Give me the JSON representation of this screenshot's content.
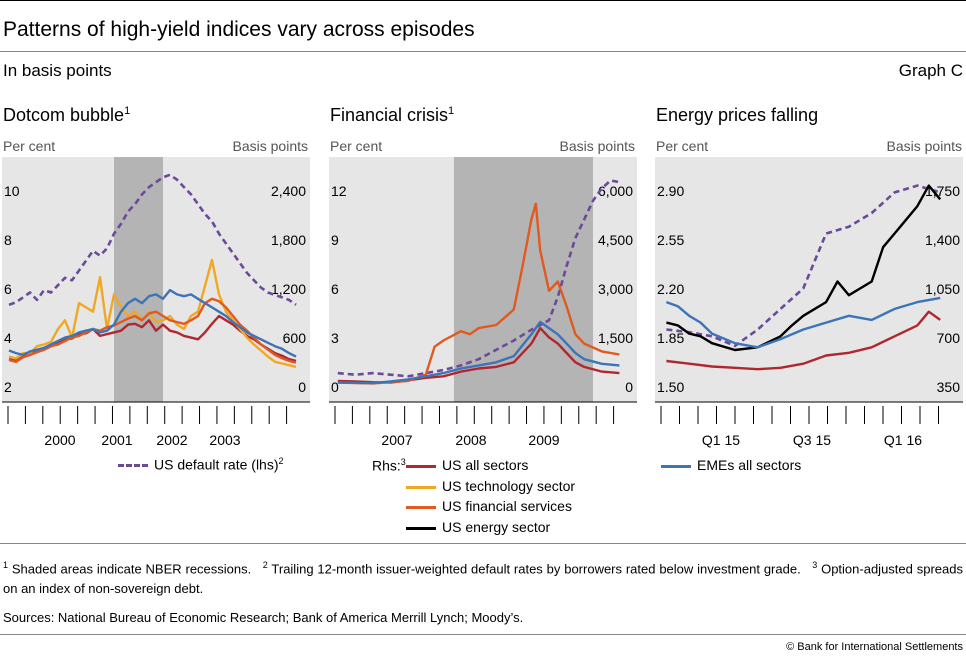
{
  "title": "Patterns of high-yield indices vary across episodes",
  "subtitle": "In basis points",
  "graph_id": "Graph C",
  "panels": [
    {
      "title": "Dotcom bubble",
      "sup": "1",
      "left_unit": "Per cent",
      "right_unit": "Basis points",
      "left_ticks": [
        "10",
        "8",
        "6",
        "4",
        "2"
      ],
      "right_ticks": [
        "2,400",
        "1,800",
        "1,200",
        "600",
        "0"
      ],
      "x_ticks": [
        "2000",
        "2001",
        "2002",
        "2003"
      ]
    },
    {
      "title": "Financial crisis",
      "sup": "1",
      "left_unit": "Per cent",
      "right_unit": "Basis points",
      "left_ticks": [
        "12",
        "9",
        "6",
        "3",
        "0"
      ],
      "right_ticks": [
        "6,000",
        "4,500",
        "3,000",
        "1,500",
        "0"
      ],
      "x_ticks": [
        "2007",
        "2008",
        "2009"
      ]
    },
    {
      "title": "Energy prices falling",
      "sup": "",
      "left_unit": "Per cent",
      "right_unit": "Basis points",
      "left_ticks": [
        "2.90",
        "2.55",
        "2.20",
        "1.85",
        "1.50"
      ],
      "right_ticks": [
        "1,750",
        "1,400",
        "1,050",
        "700",
        "350"
      ],
      "x_ticks": [
        "Q1 15",
        "Q3 15",
        "Q1 16"
      ]
    }
  ],
  "legend": {
    "default_rate": "US default rate (lhs)",
    "default_rate_sup": "2",
    "rhs_label": "Rhs:",
    "rhs_sup": "3",
    "us_all": "US all sectors",
    "us_tech": "US technology sector",
    "us_fin": "US financial services",
    "us_energy": "US energy sector",
    "emes": "EMEs all sectors"
  },
  "notes": {
    "n1_mark": "1",
    "n1": "Shaded areas indicate NBER recessions.",
    "n2_mark": "2",
    "n2": "Trailing 12-month issuer-weighted default rates by borrowers rated below investment grade.",
    "n3_mark": "3",
    "n3": "Option-adjusted spreads on an index of non-sovereign debt.",
    "sources": "Sources: National Bureau of Economic Research; Bank of America Merrill Lynch; Moody’s."
  },
  "copyright": "© Bank for International Settlements",
  "colors": {
    "default_rate": "#6b4a9a",
    "us_all": "#b0282e",
    "us_tech": "#f0a823",
    "us_fin": "#e05a1f",
    "us_energy": "#000000",
    "emes": "#3d74b8",
    "plot_bg": "#e6e6e6",
    "recession": "#b4b4b4"
  },
  "chart_data": [
    {
      "type": "line",
      "title": "Dotcom bubble",
      "x_range": [
        1999.6,
        2004.0
      ],
      "ylim_left": [
        2,
        11.5
      ],
      "ylim_right": [
        0,
        2700
      ],
      "recessions": [
        [
          2001.2,
          2001.9
        ]
      ],
      "series": [
        {
          "name": "US default rate (lhs)",
          "axis": "left",
          "style": "dashed",
          "color": "#6b4a9a",
          "x": [
            1999.7,
            1999.8,
            1999.9,
            2000.0,
            2000.1,
            2000.2,
            2000.3,
            2000.4,
            2000.5,
            2000.6,
            2000.7,
            2000.8,
            2000.9,
            2001.0,
            2001.1,
            2001.2,
            2001.3,
            2001.4,
            2001.5,
            2001.6,
            2001.7,
            2001.8,
            2001.9,
            2002.0,
            2002.1,
            2002.2,
            2002.3,
            2002.4,
            2002.5,
            2002.6,
            2002.7,
            2002.8,
            2002.9,
            2003.0,
            2003.1,
            2003.2,
            2003.3,
            2003.4,
            2003.5,
            2003.6,
            2003.7,
            2003.8
          ],
          "y": [
            5.8,
            5.9,
            6.1,
            6.3,
            6.0,
            6.4,
            6.3,
            6.6,
            6.9,
            6.8,
            7.2,
            7.6,
            8.0,
            7.8,
            8.1,
            8.7,
            9.1,
            9.6,
            9.9,
            10.3,
            10.6,
            10.8,
            11.0,
            11.1,
            10.9,
            10.6,
            10.3,
            9.9,
            9.5,
            9.2,
            8.7,
            8.3,
            7.9,
            7.5,
            7.1,
            6.8,
            6.5,
            6.3,
            6.2,
            6.1,
            6.0,
            5.8
          ]
        },
        {
          "name": "US all sectors",
          "axis": "right",
          "style": "solid",
          "color": "#b0282e",
          "x": [
            1999.7,
            1999.8,
            1999.9,
            2000.0,
            2000.1,
            2000.2,
            2000.3,
            2000.4,
            2000.5,
            2000.6,
            2000.7,
            2000.8,
            2000.9,
            2001.0,
            2001.1,
            2001.2,
            2001.3,
            2001.4,
            2001.5,
            2001.6,
            2001.7,
            2001.8,
            2001.9,
            2002.0,
            2002.1,
            2002.2,
            2002.3,
            2002.4,
            2002.5,
            2002.6,
            2002.7,
            2002.8,
            2002.9,
            2003.0,
            2003.1,
            2003.2,
            2003.3,
            2003.4,
            2003.5,
            2003.6,
            2003.7,
            2003.8
          ],
          "y": [
            450,
            430,
            480,
            500,
            540,
            560,
            600,
            650,
            680,
            690,
            740,
            750,
            800,
            720,
            740,
            760,
            780,
            850,
            860,
            820,
            900,
            780,
            850,
            780,
            760,
            720,
            700,
            680,
            760,
            860,
            950,
            900,
            850,
            780,
            720,
            680,
            620,
            570,
            520,
            490,
            450,
            430
          ]
        },
        {
          "name": "US technology sector",
          "axis": "right",
          "style": "solid",
          "color": "#f0a823",
          "x": [
            1999.7,
            1999.8,
            1999.9,
            2000.0,
            2000.1,
            2000.2,
            2000.3,
            2000.4,
            2000.5,
            2000.6,
            2000.7,
            2000.8,
            2000.9,
            2001.0,
            2001.1,
            2001.2,
            2001.3,
            2001.4,
            2001.5,
            2001.6,
            2001.7,
            2001.8,
            2001.9,
            2002.0,
            2002.1,
            2002.2,
            2002.3,
            2002.4,
            2002.5,
            2002.6,
            2002.7,
            2002.8,
            2002.9,
            2003.0,
            2003.1,
            2003.2,
            2003.3,
            2003.4,
            2003.5,
            2003.6,
            2003.7,
            2003.8
          ],
          "y": [
            480,
            460,
            520,
            520,
            600,
            620,
            650,
            800,
            900,
            700,
            1100,
            1050,
            1000,
            1400,
            800,
            1200,
            1050,
            950,
            1000,
            900,
            1000,
            880,
            900,
            950,
            850,
            800,
            950,
            1000,
            1300,
            1600,
            1200,
            1000,
            900,
            800,
            700,
            620,
            550,
            480,
            420,
            400,
            380,
            360
          ]
        },
        {
          "name": "US financial services",
          "axis": "right",
          "style": "solid",
          "color": "#e05a1f",
          "x": [
            1999.7,
            1999.8,
            1999.9,
            2000.0,
            2000.1,
            2000.2,
            2000.3,
            2000.4,
            2000.5,
            2000.6,
            2000.7,
            2000.8,
            2000.9,
            2001.0,
            2001.1,
            2001.2,
            2001.3,
            2001.4,
            2001.5,
            2001.6,
            2001.7,
            2001.8,
            2001.9,
            2002.0,
            2002.1,
            2002.2,
            2002.3,
            2002.4,
            2002.5,
            2002.6,
            2002.7,
            2002.8,
            2002.9,
            2003.0,
            2003.1,
            2003.2,
            2003.3,
            2003.4,
            2003.5,
            2003.6,
            2003.7,
            2003.8
          ],
          "y": [
            440,
            420,
            470,
            500,
            530,
            560,
            600,
            620,
            660,
            700,
            720,
            760,
            800,
            780,
            820,
            840,
            880,
            920,
            950,
            900,
            980,
            1000,
            950,
            900,
            880,
            860,
            900,
            950,
            1100,
            1150,
            1120,
            1050,
            950,
            850,
            780,
            700,
            620,
            560,
            500,
            460,
            430,
            410
          ]
        },
        {
          "name": "EMEs all sectors",
          "axis": "right",
          "style": "solid",
          "color": "#3d74b8",
          "x": [
            1999.7,
            1999.8,
            1999.9,
            2000.0,
            2000.1,
            2000.2,
            2000.3,
            2000.4,
            2000.5,
            2000.6,
            2000.7,
            2000.8,
            2000.9,
            2001.0,
            2001.1,
            2001.2,
            2001.3,
            2001.4,
            2001.5,
            2001.6,
            2001.7,
            2001.8,
            2001.9,
            2002.0,
            2002.1,
            2002.2,
            2002.3,
            2002.4,
            2002.5,
            2002.6,
            2002.7,
            2002.8,
            2002.9,
            2003.0,
            2003.1,
            2003.2,
            2003.3,
            2003.4,
            2003.5,
            2003.6,
            2003.7,
            2003.8
          ],
          "y": [
            550,
            520,
            500,
            540,
            560,
            580,
            620,
            660,
            700,
            720,
            760,
            780,
            800,
            760,
            780,
            850,
            1000,
            1100,
            1150,
            1100,
            1180,
            1200,
            1150,
            1250,
            1200,
            1180,
            1200,
            1150,
            1100,
            1050,
            1000,
            950,
            880,
            820,
            760,
            720,
            680,
            640,
            600,
            570,
            520,
            480
          ]
        }
      ]
    },
    {
      "type": "line",
      "title": "Financial crisis",
      "x_range": [
        2006.5,
        2010.0
      ],
      "ylim_left": [
        -0.5,
        14.5
      ],
      "ylim_right": [
        -250,
        7250
      ],
      "recessions": [
        [
          2007.92,
          2009.5
        ]
      ],
      "series": [
        {
          "name": "US default rate (lhs)",
          "axis": "left",
          "style": "dashed",
          "color": "#6b4a9a",
          "x": [
            2006.6,
            2006.8,
            2007.0,
            2007.2,
            2007.4,
            2007.6,
            2007.8,
            2008.0,
            2008.2,
            2008.4,
            2008.6,
            2008.8,
            2009.0,
            2009.1,
            2009.2,
            2009.3,
            2009.4,
            2009.5,
            2009.6,
            2009.7,
            2009.8
          ],
          "y": [
            1.1,
            1.0,
            1.1,
            1.0,
            0.9,
            1.1,
            1.3,
            1.6,
            2.0,
            2.6,
            3.2,
            3.9,
            4.5,
            6.0,
            8.0,
            9.8,
            11.0,
            12.2,
            13.0,
            13.5,
            13.4
          ]
        },
        {
          "name": "US all sectors",
          "axis": "right",
          "style": "solid",
          "color": "#b0282e",
          "x": [
            2006.6,
            2006.8,
            2007.0,
            2007.2,
            2007.4,
            2007.6,
            2007.8,
            2008.0,
            2008.2,
            2008.4,
            2008.6,
            2008.8,
            2008.9,
            2009.0,
            2009.1,
            2009.2,
            2009.3,
            2009.4,
            2009.6,
            2009.8
          ],
          "y": [
            300,
            280,
            260,
            250,
            320,
            400,
            450,
            600,
            700,
            750,
            900,
            1500,
            2000,
            1700,
            1500,
            1200,
            900,
            750,
            600,
            550
          ]
        },
        {
          "name": "US financial services",
          "axis": "right",
          "style": "solid",
          "color": "#e05a1f",
          "x": [
            2006.6,
            2006.8,
            2007.0,
            2007.2,
            2007.4,
            2007.6,
            2007.7,
            2007.8,
            2008.0,
            2008.1,
            2008.2,
            2008.4,
            2008.6,
            2008.7,
            2008.8,
            2008.85,
            2008.9,
            2009.0,
            2009.1,
            2009.2,
            2009.3,
            2009.4,
            2009.6,
            2009.8
          ],
          "y": [
            250,
            230,
            220,
            260,
            300,
            500,
            1400,
            1600,
            1900,
            1800,
            2000,
            2100,
            2600,
            4000,
            5500,
            6000,
            4500,
            3200,
            3500,
            2700,
            1800,
            1500,
            1250,
            1150
          ]
        },
        {
          "name": "EMEs all sectors",
          "axis": "right",
          "style": "solid",
          "color": "#3d74b8",
          "x": [
            2006.6,
            2006.8,
            2007.0,
            2007.2,
            2007.4,
            2007.6,
            2007.8,
            2008.0,
            2008.2,
            2008.4,
            2008.6,
            2008.8,
            2008.9,
            2009.0,
            2009.1,
            2009.2,
            2009.3,
            2009.4,
            2009.6,
            2009.8
          ],
          "y": [
            250,
            240,
            230,
            280,
            350,
            450,
            550,
            700,
            800,
            900,
            1100,
            1800,
            2200,
            2000,
            1800,
            1500,
            1200,
            1000,
            850,
            800
          ]
        }
      ]
    },
    {
      "type": "line",
      "title": "Energy prices falling",
      "x_range": [
        2014.95,
        2016.3
      ],
      "ylim_left": [
        1.4,
        3.1
      ],
      "ylim_right": [
        250,
        1950
      ],
      "recessions": [],
      "series": [
        {
          "name": "US default rate (lhs)",
          "axis": "left",
          "style": "dashed",
          "color": "#6b4a9a",
          "x": [
            2015.0,
            2015.1,
            2015.2,
            2015.3,
            2015.4,
            2015.5,
            2015.6,
            2015.7,
            2015.8,
            2015.9,
            2016.0,
            2016.1,
            2016.2
          ],
          "y": [
            1.9,
            1.88,
            1.85,
            1.78,
            1.9,
            2.05,
            2.2,
            2.6,
            2.65,
            2.75,
            2.9,
            2.95,
            2.9
          ]
        },
        {
          "name": "US all sectors",
          "axis": "right",
          "style": "solid",
          "color": "#b0282e",
          "x": [
            2015.0,
            2015.1,
            2015.2,
            2015.3,
            2015.4,
            2015.5,
            2015.6,
            2015.7,
            2015.8,
            2015.9,
            2016.0,
            2016.1,
            2016.15,
            2016.2
          ],
          "y": [
            520,
            500,
            480,
            470,
            460,
            470,
            500,
            560,
            580,
            620,
            700,
            780,
            880,
            820
          ]
        },
        {
          "name": "US energy sector",
          "axis": "right",
          "style": "solid",
          "color": "#000000",
          "x": [
            2015.0,
            2015.05,
            2015.1,
            2015.15,
            2015.2,
            2015.3,
            2015.4,
            2015.5,
            2015.55,
            2015.6,
            2015.7,
            2015.75,
            2015.8,
            2015.9,
            2015.95,
            2016.0,
            2016.05,
            2016.1,
            2016.15,
            2016.2
          ],
          "y": [
            800,
            780,
            720,
            700,
            650,
            600,
            620,
            700,
            780,
            850,
            950,
            1100,
            1000,
            1100,
            1350,
            1450,
            1550,
            1650,
            1800,
            1700
          ]
        },
        {
          "name": "EMEs all sectors",
          "axis": "right",
          "style": "solid",
          "color": "#3d74b8",
          "x": [
            2015.0,
            2015.05,
            2015.1,
            2015.15,
            2015.2,
            2015.3,
            2015.4,
            2015.5,
            2015.6,
            2015.7,
            2015.8,
            2015.9,
            2016.0,
            2016.1,
            2016.2
          ],
          "y": [
            950,
            920,
            850,
            800,
            720,
            650,
            620,
            680,
            750,
            800,
            850,
            820,
            900,
            950,
            980
          ]
        }
      ]
    }
  ]
}
